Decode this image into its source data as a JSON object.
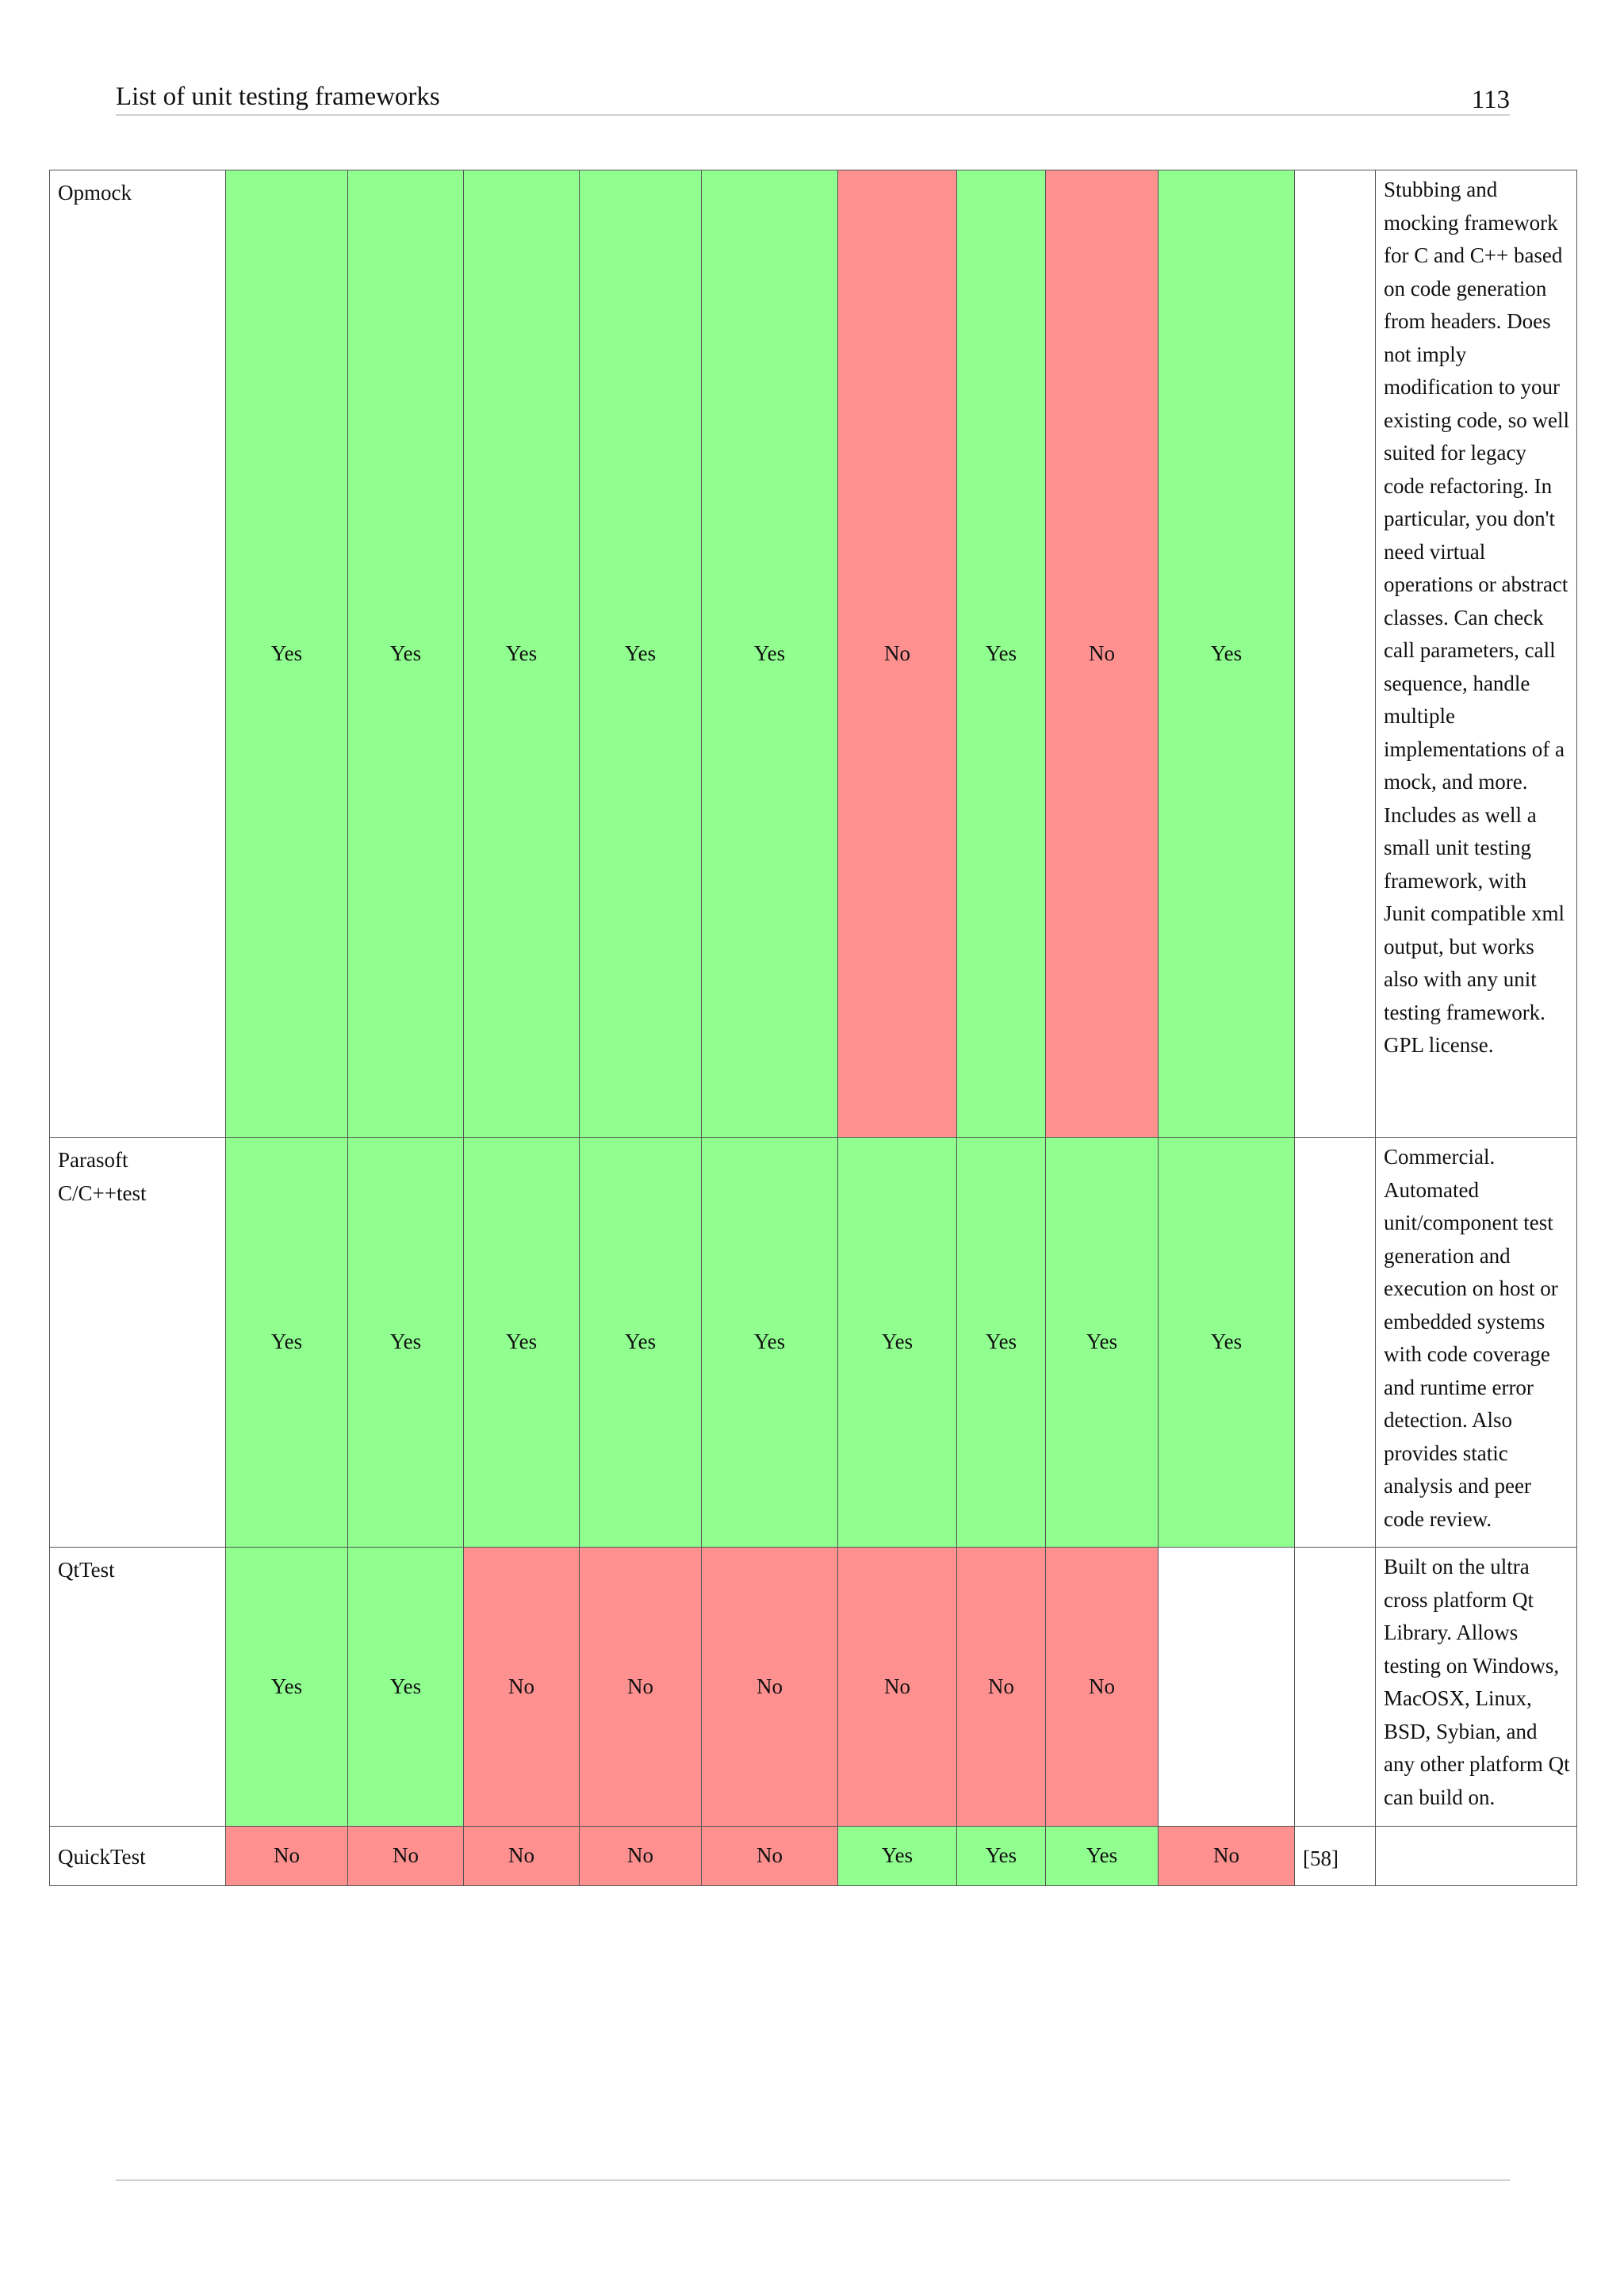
{
  "header": {
    "title": "List of unit testing frameworks",
    "page_number": "113"
  },
  "table": {
    "rows": [
      {
        "name": "Opmock",
        "cells": [
          "Yes",
          "Yes",
          "Yes",
          "Yes",
          "Yes",
          "No",
          "Yes",
          "No",
          "Yes"
        ],
        "ref": "",
        "notes": "Stubbing and mocking framework for C and C++ based on code generation from headers. Does not imply modification to your existing code, so well suited for legacy code refactoring. In particular, you don't need virtual operations or abstract classes. Can check call parameters, call sequence, handle multiple implementations of a mock, and more. Includes as well a small unit testing framework, with Junit compatible xml output, but works also with any unit testing framework. GPL license."
      },
      {
        "name": "Parasoft C/C++test",
        "cells": [
          "Yes",
          "Yes",
          "Yes",
          "Yes",
          "Yes",
          "Yes",
          "Yes",
          "Yes",
          "Yes"
        ],
        "ref": "",
        "notes": "Commercial. Automated unit/component test generation and execution on host or embedded systems with code coverage and runtime error detection. Also provides static analysis and peer code review."
      },
      {
        "name": "QtTest",
        "cells": [
          "Yes",
          "Yes",
          "No",
          "No",
          "No",
          "No",
          "No",
          "No",
          ""
        ],
        "ref": "",
        "notes": "Built on the ultra cross platform Qt Library. Allows testing on Windows, MacOSX, Linux, BSD, Sybian, and any other platform Qt can build on."
      },
      {
        "name": "QuickTest",
        "cells": [
          "No",
          "No",
          "No",
          "No",
          "No",
          "Yes",
          "Yes",
          "Yes",
          "No"
        ],
        "ref": "[58]",
        "notes": ""
      }
    ]
  }
}
